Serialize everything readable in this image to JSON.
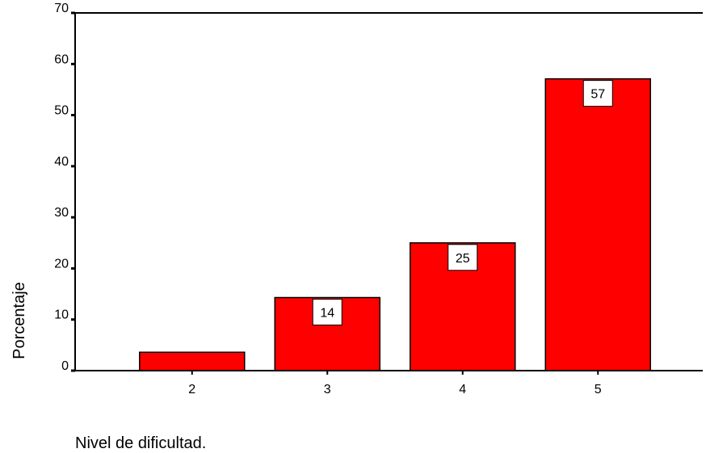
{
  "chart_data": {
    "type": "bar",
    "categories": [
      "2",
      "3",
      "4",
      "5"
    ],
    "values": [
      3.6,
      14.3,
      25,
      57.1
    ],
    "data_labels": [
      "",
      "14",
      "25",
      "57"
    ],
    "xlabel": "Nivel de dificultad.",
    "ylabel": "Porcentaje",
    "ylim": [
      0,
      70
    ],
    "yticks": [
      0,
      10,
      20,
      30,
      40,
      50,
      60,
      70
    ],
    "grid": false,
    "bar_color": "#ff0000",
    "edge_color": "#000000"
  }
}
